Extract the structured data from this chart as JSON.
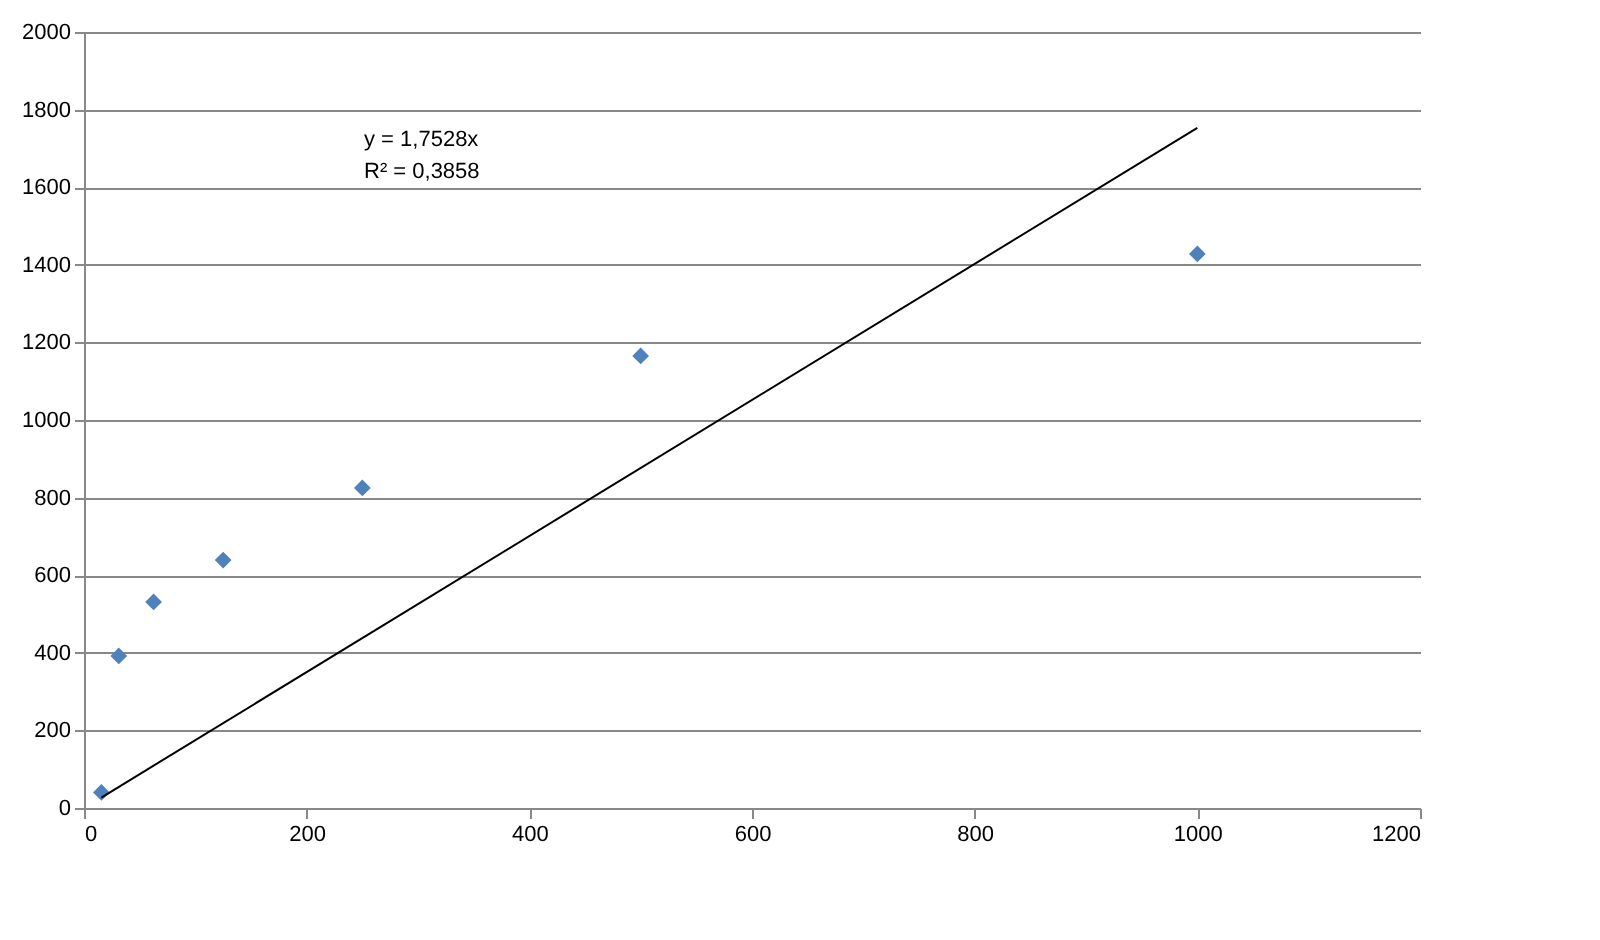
{
  "chart_data": {
    "type": "scatter",
    "x": [
      15.625,
      31.25,
      62.5,
      125,
      250,
      500,
      1000
    ],
    "series": [
      {
        "type": "scatter",
        "color": "#4f81bd",
        "marker": "diamond",
        "values": [
          40,
          392,
          531,
          639,
          825,
          1165,
          1428
        ]
      },
      {
        "type": "line",
        "color": "#000000",
        "marker": "none",
        "x": [
          15.625,
          1000
        ],
        "values": [
          27,
          1753
        ]
      }
    ],
    "annotations": [
      "y = 1,7528x",
      "R² = 0,3858"
    ],
    "xlim": [
      0,
      1200
    ],
    "xticks": [
      0,
      200,
      400,
      600,
      800,
      1000,
      1200
    ],
    "ylim": [
      0,
      2000
    ],
    "yticks": [
      0,
      200,
      400,
      600,
      800,
      1000,
      1200,
      1400,
      1600,
      1800,
      2000
    ],
    "grid": "y"
  }
}
